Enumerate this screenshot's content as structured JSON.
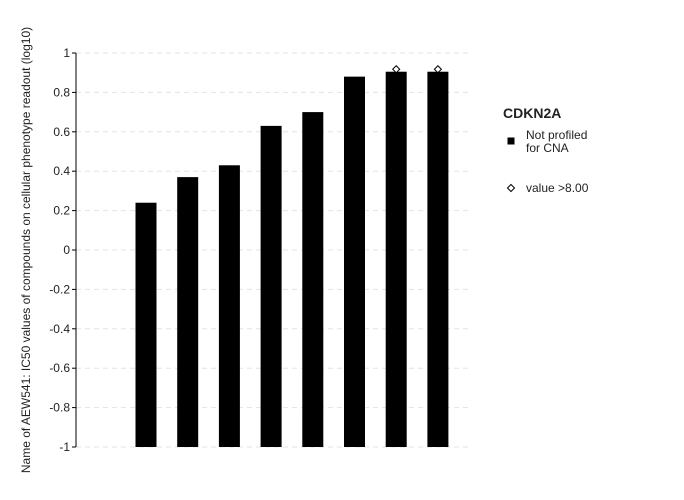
{
  "chart_data": {
    "type": "bar",
    "ylabel": "Name of AEW541: IC50 values of compounds on cellular phenotype readout (log10)",
    "ylim": [
      -1,
      1
    ],
    "yticks": [
      1,
      0.8,
      0.6,
      0.4,
      0.2,
      0,
      -0.2,
      -0.4,
      -0.6,
      -0.8,
      -1
    ],
    "ytick_labels": [
      "1",
      "0.8",
      "0.6",
      "0.4",
      "0.2",
      "0",
      "-0.2",
      "-0.4",
      "-0.6",
      "-0.8",
      "-1"
    ],
    "grid": true,
    "base": -1,
    "bar_color": "#000000",
    "values": [
      0.24,
      0.37,
      0.43,
      0.63,
      0.7,
      0.88,
      0.905,
      0.905
    ],
    "censored": [
      false,
      false,
      false,
      false,
      false,
      false,
      true,
      true
    ],
    "legend": {
      "position": "right",
      "title": "CDKN2A",
      "items": [
        {
          "marker": "square",
          "text_lines": [
            "Not profiled",
            "for CNA"
          ]
        },
        {
          "marker": "diamond",
          "text_lines": [
            "value >8.00"
          ]
        }
      ]
    }
  }
}
